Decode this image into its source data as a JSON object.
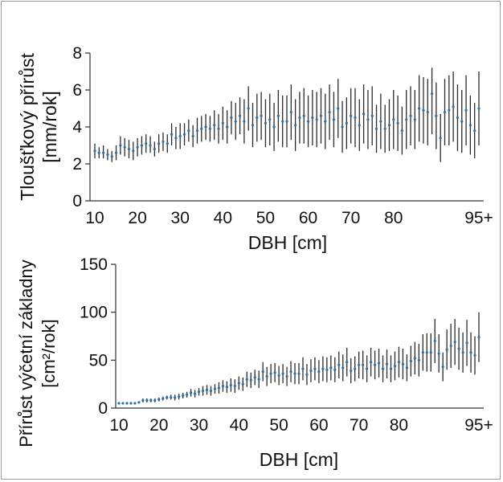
{
  "chart_data": [
    {
      "type": "scatter",
      "xlabel": "DBH [cm]",
      "ylabel_lines": [
        "Tloušťkový přírůst",
        "[mm/rok]"
      ],
      "xticks": [
        "10",
        "20",
        "30",
        "40",
        "50",
        "60",
        "70",
        "80",
        "95+"
      ],
      "yticks": [
        "0",
        "2",
        "4",
        "6",
        "8"
      ],
      "ylim": [
        0,
        8
      ],
      "x_categories_from": 10,
      "x_categories_to": 95,
      "series": [
        {
          "mean": [
            2.7,
            2.6,
            2.6,
            2.5,
            2.4,
            2.6,
            3.0,
            2.9,
            2.8,
            2.7,
            2.9,
            3.0,
            3.1,
            3.0,
            2.8,
            3.1,
            3.2,
            3.1,
            3.6,
            3.4,
            3.5,
            3.6,
            3.8,
            3.5,
            3.8,
            3.9,
            4.0,
            3.9,
            4.1,
            3.9,
            4.2,
            4.0,
            4.5,
            4.3,
            4.6,
            4.3,
            5.0,
            4.1,
            4.5,
            4.6,
            4.2,
            4.4,
            4.0,
            4.6,
            4.3,
            4.3,
            4.8,
            4.1,
            4.5,
            4.6,
            4.3,
            4.5,
            4.4,
            4.6,
            4.3,
            4.8,
            4.4,
            5.0,
            4.0,
            4.2,
            4.6,
            4.5,
            4.1,
            4.7,
            4.4,
            4.6,
            3.9,
            4.3,
            3.9,
            4.1,
            4.4,
            4.2,
            3.8,
            4.4,
            4.6,
            4.4,
            5.0,
            4.9,
            4.8,
            5.8,
            4.6,
            3.4,
            4.8,
            4.9,
            5.1,
            4.5,
            4.3,
            4.9,
            4.1,
            3.8,
            5.0
          ],
          "lower": [
            2.3,
            2.3,
            2.3,
            2.2,
            2.1,
            2.2,
            2.5,
            2.4,
            2.3,
            2.2,
            2.4,
            2.5,
            2.6,
            2.6,
            2.4,
            2.6,
            2.7,
            2.6,
            3.0,
            2.8,
            2.8,
            3.0,
            3.2,
            2.9,
            3.1,
            3.2,
            3.3,
            3.2,
            3.3,
            3.1,
            3.3,
            3.1,
            3.6,
            3.3,
            3.6,
            3.1,
            3.8,
            2.9,
            3.2,
            3.3,
            2.9,
            3.0,
            2.7,
            3.2,
            2.9,
            2.9,
            3.3,
            2.7,
            3.1,
            3.1,
            2.9,
            3.0,
            2.9,
            3.1,
            2.8,
            3.3,
            2.9,
            3.4,
            2.6,
            2.8,
            3.1,
            2.9,
            2.7,
            3.1,
            2.8,
            3.0,
            2.6,
            2.8,
            2.6,
            2.7,
            2.8,
            2.7,
            2.5,
            2.8,
            3.0,
            2.8,
            3.2,
            3.1,
            3.0,
            3.6,
            2.8,
            2.1,
            3.0,
            3.0,
            3.2,
            2.7,
            2.6,
            3.0,
            2.5,
            2.3,
            3.0
          ],
          "upper": [
            3.1,
            2.9,
            3.0,
            2.8,
            2.7,
            3.0,
            3.5,
            3.4,
            3.3,
            3.2,
            3.4,
            3.5,
            3.6,
            3.5,
            3.2,
            3.6,
            3.7,
            3.6,
            4.2,
            4.0,
            4.2,
            4.2,
            4.4,
            4.1,
            4.5,
            4.6,
            4.7,
            4.6,
            4.9,
            4.7,
            5.1,
            4.9,
            5.4,
            5.3,
            5.6,
            5.5,
            6.2,
            5.3,
            5.8,
            5.9,
            5.5,
            5.8,
            5.3,
            6.0,
            5.7,
            5.7,
            6.3,
            5.5,
            5.9,
            6.1,
            5.7,
            6.0,
            5.9,
            6.1,
            5.8,
            6.3,
            5.9,
            6.6,
            5.4,
            5.6,
            6.1,
            6.1,
            5.5,
            6.3,
            6.0,
            6.2,
            5.2,
            5.8,
            5.2,
            5.5,
            6.0,
            5.7,
            5.1,
            6.0,
            6.2,
            6.0,
            6.8,
            6.7,
            6.6,
            7.2,
            6.4,
            4.7,
            6.6,
            6.8,
            7.0,
            6.3,
            6.0,
            6.8,
            5.7,
            5.3,
            7.0
          ]
        }
      ]
    },
    {
      "type": "scatter",
      "xlabel": "DBH [cm]",
      "ylabel_lines": [
        "Přírůst výčetní základny",
        "[cm²/rok]"
      ],
      "xticks": [
        "10",
        "20",
        "30",
        "40",
        "50",
        "60",
        "70",
        "80",
        "95+"
      ],
      "yticks": [
        "0",
        "50",
        "100",
        "150"
      ],
      "ylim": [
        0,
        150
      ],
      "x_categories_from": 10,
      "x_categories_to": 95,
      "series": [
        {
          "mean": [
            5,
            5,
            5,
            5,
            5,
            6,
            8,
            8,
            8,
            8,
            9,
            10,
            11,
            11,
            11,
            12,
            13,
            14,
            16,
            15,
            17,
            18,
            19,
            18,
            20,
            21,
            23,
            22,
            24,
            23,
            26,
            25,
            30,
            29,
            32,
            30,
            38,
            33,
            36,
            37,
            34,
            36,
            33,
            38,
            36,
            36,
            41,
            35,
            39,
            41,
            38,
            41,
            40,
            42,
            40,
            45,
            42,
            48,
            39,
            41,
            45,
            45,
            41,
            48,
            45,
            47,
            41,
            46,
            41,
            44,
            48,
            46,
            42,
            49,
            52,
            50,
            58,
            58,
            58,
            70,
            57,
            43,
            61,
            65,
            69,
            62,
            58,
            68,
            58,
            55,
            74
          ],
          "lower": [
            4,
            4,
            4,
            4,
            4,
            5,
            6,
            6,
            6,
            6,
            7,
            8,
            9,
            9,
            8,
            9,
            10,
            11,
            12,
            11,
            13,
            13,
            14,
            13,
            15,
            15,
            17,
            16,
            17,
            16,
            19,
            18,
            22,
            21,
            24,
            21,
            28,
            23,
            26,
            27,
            24,
            26,
            23,
            27,
            25,
            25,
            29,
            24,
            27,
            29,
            26,
            28,
            27,
            29,
            27,
            31,
            28,
            33,
            26,
            28,
            31,
            30,
            27,
            33,
            30,
            32,
            27,
            31,
            27,
            29,
            32,
            30,
            28,
            33,
            35,
            33,
            39,
            38,
            38,
            47,
            37,
            28,
            40,
            42,
            45,
            40,
            37,
            44,
            37,
            35,
            48
          ],
          "upper": [
            6,
            6,
            6,
            6,
            6,
            7,
            10,
            10,
            10,
            10,
            11,
            12,
            13,
            14,
            14,
            15,
            16,
            17,
            20,
            19,
            21,
            23,
            24,
            23,
            25,
            27,
            29,
            28,
            31,
            30,
            33,
            32,
            38,
            37,
            40,
            39,
            48,
            43,
            46,
            47,
            44,
            46,
            43,
            49,
            47,
            47,
            53,
            46,
            51,
            53,
            50,
            54,
            53,
            55,
            53,
            59,
            56,
            63,
            52,
            54,
            59,
            60,
            55,
            63,
            60,
            62,
            55,
            61,
            55,
            59,
            64,
            62,
            56,
            65,
            69,
            67,
            77,
            78,
            78,
            93,
            77,
            58,
            82,
            88,
            93,
            84,
            79,
            92,
            79,
            75,
            100
          ]
        }
      ]
    }
  ]
}
